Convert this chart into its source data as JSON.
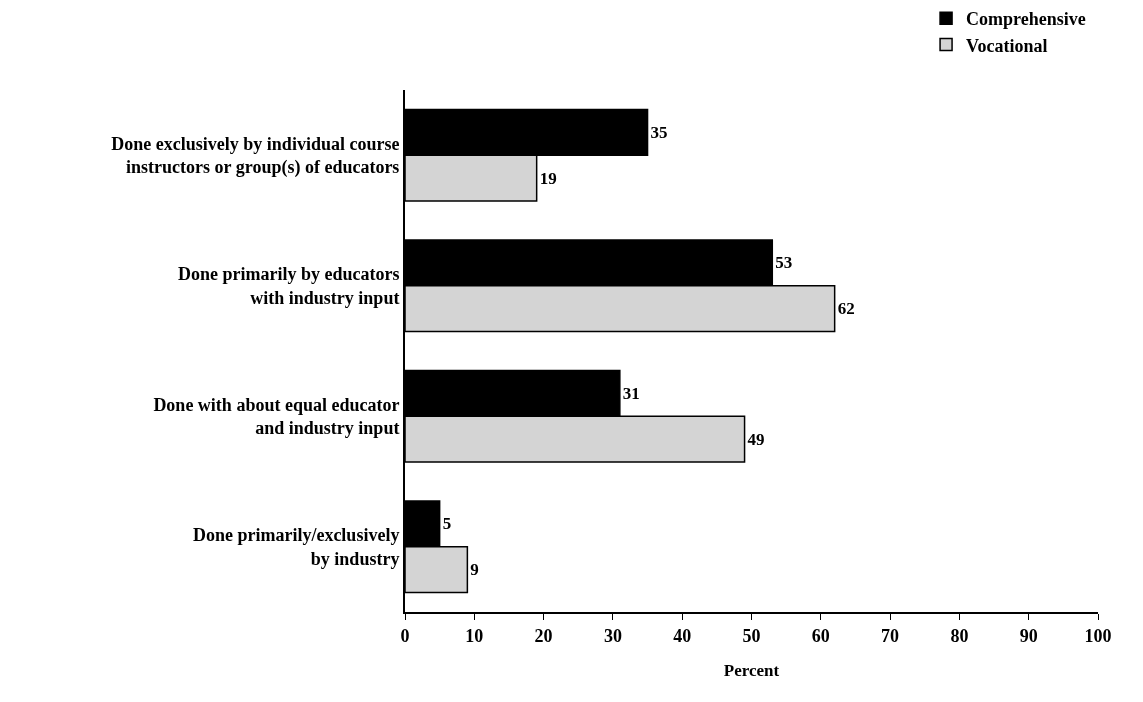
{
  "chart_data": {
    "type": "bar",
    "orientation": "horizontal",
    "xlabel": "Percent",
    "categories": [
      "Done exclusively by individual course\ninstructors or group(s) of educators",
      "Done primarily by educators\nwith industry input",
      "Done with about equal educator\nand industry input",
      "Done primarily/exclusively\nby industry"
    ],
    "series": [
      {
        "name": "Comprehensive",
        "color": "#000000",
        "values": [
          35,
          53,
          31,
          5
        ]
      },
      {
        "name": "Vocational",
        "color": "#d4d4d4",
        "values": [
          19,
          62,
          49,
          9
        ]
      }
    ],
    "xlim": [
      0,
      100
    ],
    "xticks": [
      0,
      10,
      20,
      30,
      40,
      50,
      60,
      70,
      80,
      90,
      100
    ],
    "data_labels": true,
    "legend": "top right"
  }
}
